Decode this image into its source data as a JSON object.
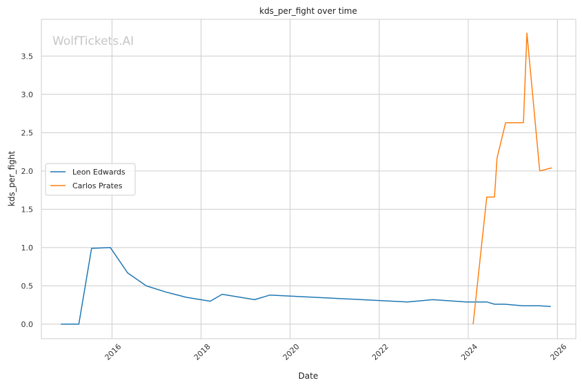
{
  "watermark": "WolfTickets.AI",
  "chart_data": {
    "type": "line",
    "title": "kds_per_fight over time",
    "xlabel": "Date",
    "ylabel": "kds_per_fight",
    "x_type": "date",
    "xlim": [
      "2014-06-01",
      "2026-06-01"
    ],
    "ylim": [
      -0.19,
      3.98
    ],
    "x_ticks": [
      "2016",
      "2018",
      "2020",
      "2022",
      "2024",
      "2026"
    ],
    "y_ticks": [
      "0.0",
      "0.5",
      "1.0",
      "1.5",
      "2.0",
      "2.5",
      "3.0",
      "3.5"
    ],
    "grid": true,
    "legend_position": "center-left",
    "series": [
      {
        "name": "Leon Edwards",
        "color": "#1f77b4",
        "points": [
          [
            "2014-11-08",
            0.0
          ],
          [
            "2015-04-04",
            0.0
          ],
          [
            "2015-07-18",
            0.99
          ],
          [
            "2015-12-19",
            1.0
          ],
          [
            "2016-05-08",
            0.67
          ],
          [
            "2016-10-08",
            0.5
          ],
          [
            "2017-03-18",
            0.42
          ],
          [
            "2017-09-02",
            0.35
          ],
          [
            "2018-03-17",
            0.3
          ],
          [
            "2018-06-23",
            0.39
          ],
          [
            "2019-03-16",
            0.32
          ],
          [
            "2019-07-20",
            0.38
          ],
          [
            "2022-08-20",
            0.29
          ],
          [
            "2023-03-18",
            0.32
          ],
          [
            "2023-12-16",
            0.29
          ],
          [
            "2024-03-23",
            0.29
          ],
          [
            "2024-06-01",
            0.29
          ],
          [
            "2024-08-03",
            0.26
          ],
          [
            "2024-10-26",
            0.26
          ],
          [
            "2025-03-22",
            0.24
          ],
          [
            "2025-08-09",
            0.24
          ],
          [
            "2025-11-08",
            0.23
          ]
        ]
      },
      {
        "name": "Carlos Prates",
        "color": "#ff7f0e",
        "points": [
          [
            "2024-02-10",
            0.0
          ],
          [
            "2024-06-01",
            1.66
          ],
          [
            "2024-08-03",
            1.66
          ],
          [
            "2024-08-24",
            2.17
          ],
          [
            "2024-11-02",
            2.63
          ],
          [
            "2025-03-29",
            2.63
          ],
          [
            "2025-04-26",
            3.8
          ],
          [
            "2025-08-09",
            2.0
          ],
          [
            "2025-11-15",
            2.04
          ]
        ]
      }
    ]
  }
}
